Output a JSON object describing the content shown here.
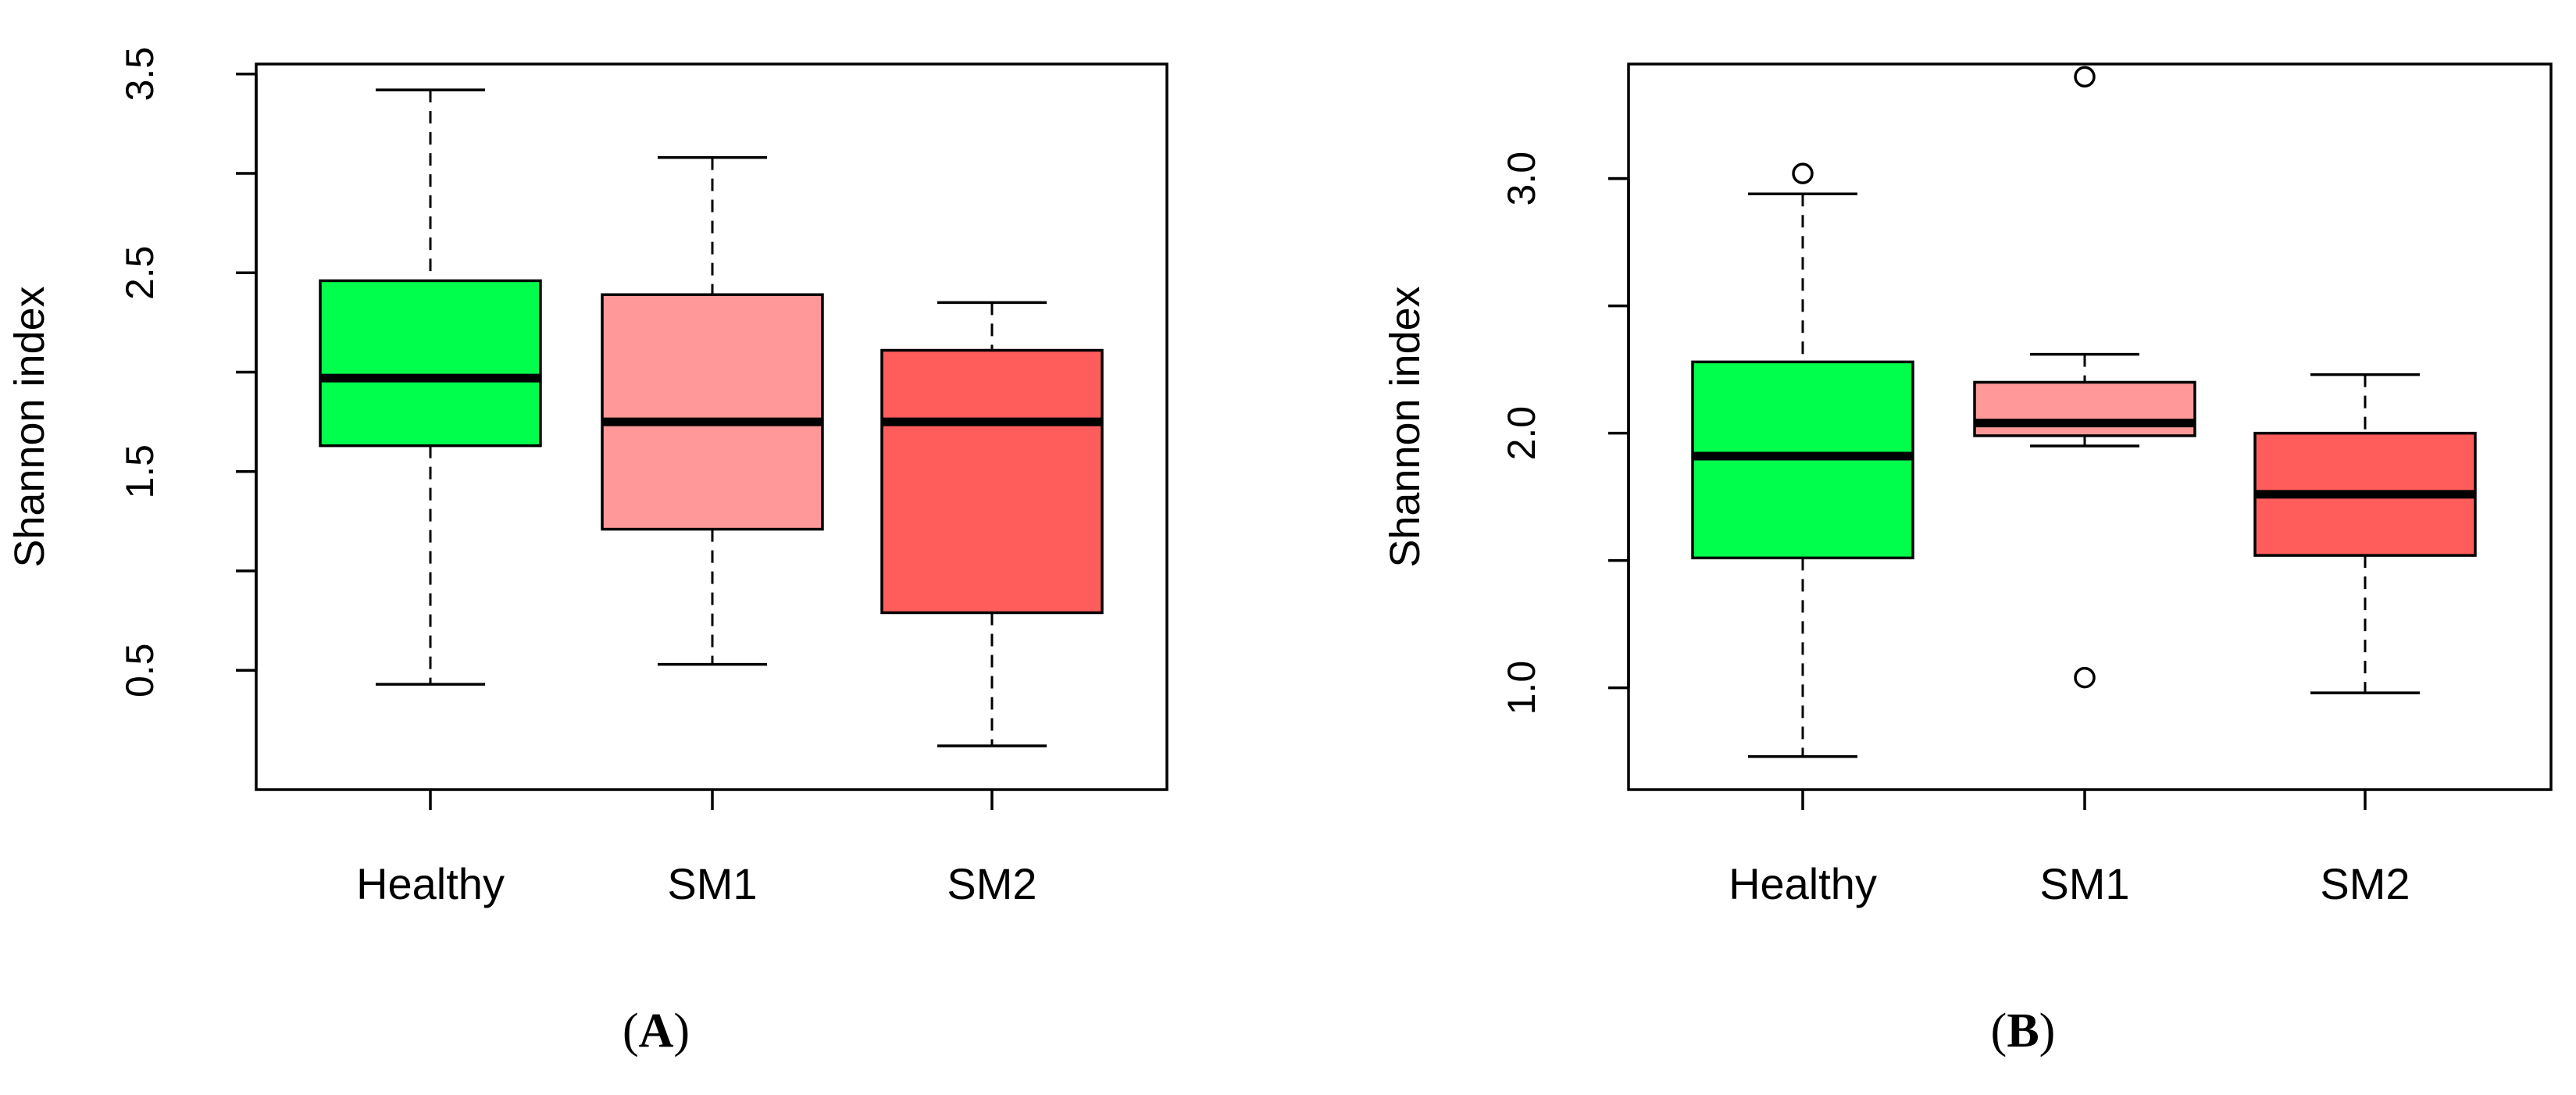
{
  "chart_data": [
    {
      "type": "boxplot",
      "panel_label": "A",
      "title": "",
      "xlabel": "",
      "ylabel": "Shannon index",
      "ylim": [
        -0.1,
        3.55
      ],
      "yticks": [
        0.5,
        1.5,
        2.5,
        3.5
      ],
      "yticks_minor": [
        1.0,
        2.0,
        3.0
      ],
      "ytick_labels": [
        "0.5",
        "1.5",
        "2.5",
        "3.5"
      ],
      "grid": false,
      "categories": [
        "Healthy",
        "SM1",
        "SM2"
      ],
      "boxes": [
        {
          "name": "Healthy",
          "color": "#00ff4d",
          "whisker_low": 0.43,
          "q1": 1.63,
          "median": 1.97,
          "q3": 2.46,
          "whisker_high": 3.42,
          "outliers": []
        },
        {
          "name": "SM1",
          "color": "#ff9999",
          "whisker_low": 0.53,
          "q1": 1.21,
          "median": 1.75,
          "q3": 2.39,
          "whisker_high": 3.08,
          "outliers": []
        },
        {
          "name": "SM2",
          "color": "#ff5c5c",
          "whisker_low": 0.12,
          "q1": 0.79,
          "median": 1.75,
          "q3": 2.11,
          "whisker_high": 2.35,
          "outliers": []
        }
      ]
    },
    {
      "type": "boxplot",
      "panel_label": "B",
      "title": "",
      "xlabel": "",
      "ylabel": "Shannon index",
      "ylim": [
        0.6,
        3.45
      ],
      "yticks": [
        1.0,
        2.0,
        3.0
      ],
      "yticks_minor": [
        1.5,
        2.5,
        3.0
      ],
      "ytick_labels": [
        "1.0",
        "2.0",
        "3.0"
      ],
      "grid": false,
      "categories": [
        "Healthy",
        "SM1",
        "SM2"
      ],
      "boxes": [
        {
          "name": "Healthy",
          "color": "#00ff4d",
          "whisker_low": 0.73,
          "q1": 1.51,
          "median": 1.91,
          "q3": 2.28,
          "whisker_high": 2.94,
          "outliers": [
            3.02
          ]
        },
        {
          "name": "SM1",
          "color": "#ff9999",
          "whisker_low": 1.95,
          "q1": 1.99,
          "median": 2.04,
          "q3": 2.2,
          "whisker_high": 2.31,
          "outliers": [
            3.4,
            1.04
          ]
        },
        {
          "name": "SM2",
          "color": "#ff5c5c",
          "whisker_low": 0.98,
          "q1": 1.52,
          "median": 1.76,
          "q3": 2.0,
          "whisker_high": 2.23,
          "outliers": []
        }
      ]
    }
  ]
}
